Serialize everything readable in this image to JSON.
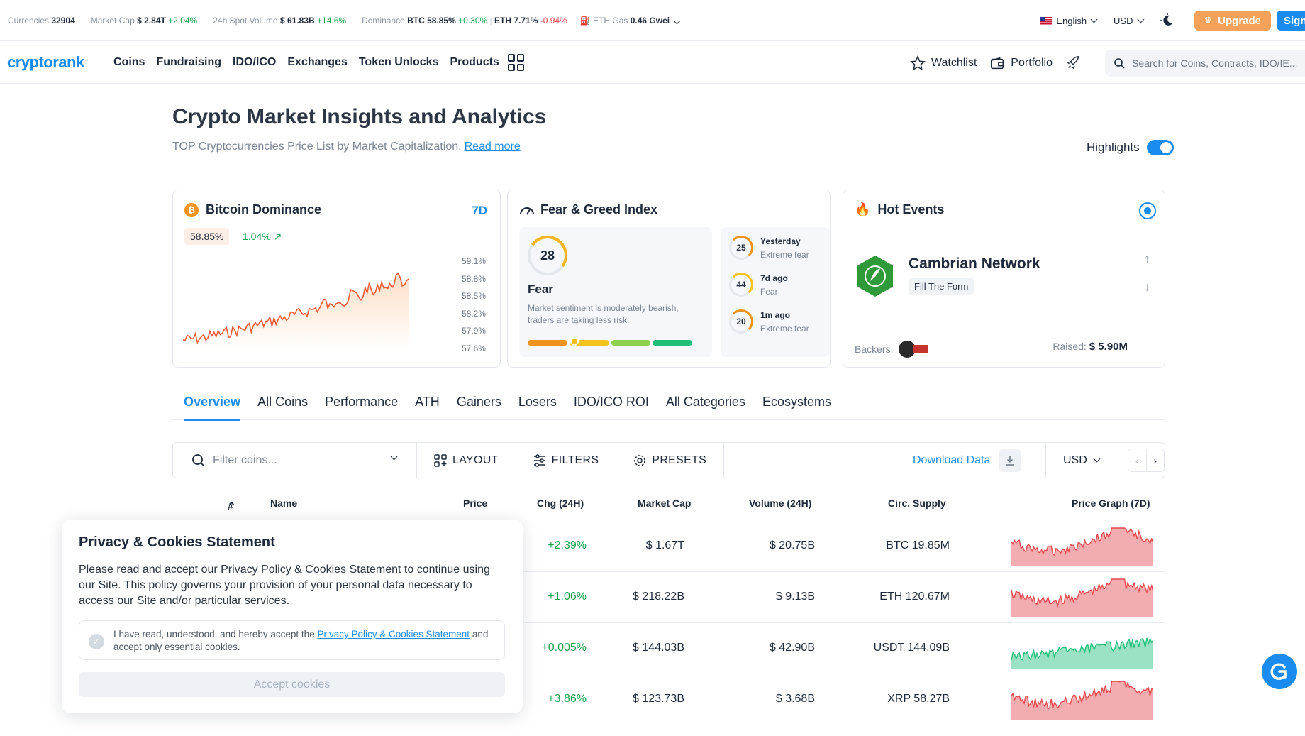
{
  "ticker": {
    "currencies_label": "Currencies",
    "currencies_value": "32904",
    "mcap_label": "Market Cap",
    "mcap_value": "$ 2.84T",
    "mcap_change": "+2.04%",
    "vol_label": "24h Spot Volume",
    "vol_value": "$ 61.83B",
    "vol_change": "+14.6%",
    "dom_label": "Dominance",
    "dom_btc": "BTC 58.85%",
    "dom_btc_change": "+0.30%",
    "dom_eth": "ETH 7.71%",
    "dom_eth_change": "-0.94%",
    "gas_label": "ETH Gas",
    "gas_value": "0.46 Gwei",
    "language": "English",
    "currency": "USD",
    "upgrade_label": "Upgrade",
    "signup_label": "Sign"
  },
  "nav": {
    "logo": "cryptorank",
    "links": [
      "Coins",
      "Fundraising",
      "IDO/ICO",
      "Exchanges",
      "Token Unlocks",
      "Products"
    ],
    "watchlist": "Watchlist",
    "portfolio": "Portfolio",
    "search_placeholder": "Search for Coins, Contracts, IDO/IE..."
  },
  "header": {
    "title": "Crypto Market Insights and Analytics",
    "subtitle": "TOP Cryptocurrencies Price List by Market Capitalization.",
    "read_more": "Read more",
    "highlights_label": "Highlights",
    "highlights_on": true
  },
  "btc_dominance": {
    "title": "Bitcoin Dominance",
    "period": "7D",
    "value": "58.85%",
    "change": "1.04%",
    "y_ticks": [
      "59.1%",
      "58.8%",
      "58.5%",
      "58.2%",
      "57.9%",
      "57.6%"
    ]
  },
  "fear_greed": {
    "title": "Fear & Greed Index",
    "value": "28",
    "label": "Fear",
    "description": "Market sentiment is moderately bearish, traders are taking less risk.",
    "history": [
      {
        "value": "25",
        "when": "Yesterday",
        "label": "Extreme fear",
        "color": "#f0931d"
      },
      {
        "value": "44",
        "when": "7d ago",
        "label": "Fear",
        "color": "#f6c21e"
      },
      {
        "value": "20",
        "when": "1m ago",
        "label": "Extreme fear",
        "color": "#f0931d"
      }
    ]
  },
  "hot_events": {
    "title": "Hot Events",
    "project": "Cambrian Network",
    "tag": "Fill The Form",
    "backers_label": "Backers:",
    "raised_label": "Raised:",
    "raised_value": "$ 5.90M"
  },
  "tabs": [
    "Overview",
    "All Coins",
    "Performance",
    "ATH",
    "Gainers",
    "Losers",
    "IDO/ICO ROI",
    "All Categories",
    "Ecosystems"
  ],
  "toolbar": {
    "filter_placeholder": "Filter coins...",
    "layout": "LAYOUT",
    "filters": "FILTERS",
    "presets": "PRESETS",
    "download": "Download Data",
    "currency": "USD"
  },
  "table": {
    "headers": {
      "rank": "#",
      "name": "Name",
      "price": "Price",
      "chg": "Chg (24H)",
      "mcap": "Market Cap",
      "volume": "Volume (24H)",
      "supply": "Circ. Supply",
      "graph": "Price Graph (7D)"
    },
    "rows": [
      {
        "chg": "+2.39%",
        "mcap": "$ 1.67T",
        "volume": "$ 20.75B",
        "supply": "BTC 19.85M",
        "trend": "down"
      },
      {
        "chg": "+1.06%",
        "mcap": "$ 218.22B",
        "volume": "$ 9.13B",
        "supply": "ETH 120.67M",
        "trend": "down"
      },
      {
        "chg": "+0.005%",
        "mcap": "$ 144.03B",
        "volume": "$ 42.90B",
        "supply": "USDT 144.09B",
        "trend": "up"
      },
      {
        "chg": "+3.86%",
        "mcap": "$ 123.73B",
        "volume": "$ 3.68B",
        "supply": "XRP 58.27B",
        "trend": "down"
      }
    ]
  },
  "cookie": {
    "title": "Privacy & Cookies Statement",
    "body": "Please read and accept our Privacy Policy & Cookies Statement to continue using our Site. This policy governs your provision of your personal data necessary to access our Site and/or particular services.",
    "consent_prefix": "I have read, understood, and hereby accept the",
    "consent_link": "Privacy Policy & Cookies Statement",
    "consent_suffix": "and accept only essential cookies.",
    "accept_label": "Accept cookies"
  }
}
